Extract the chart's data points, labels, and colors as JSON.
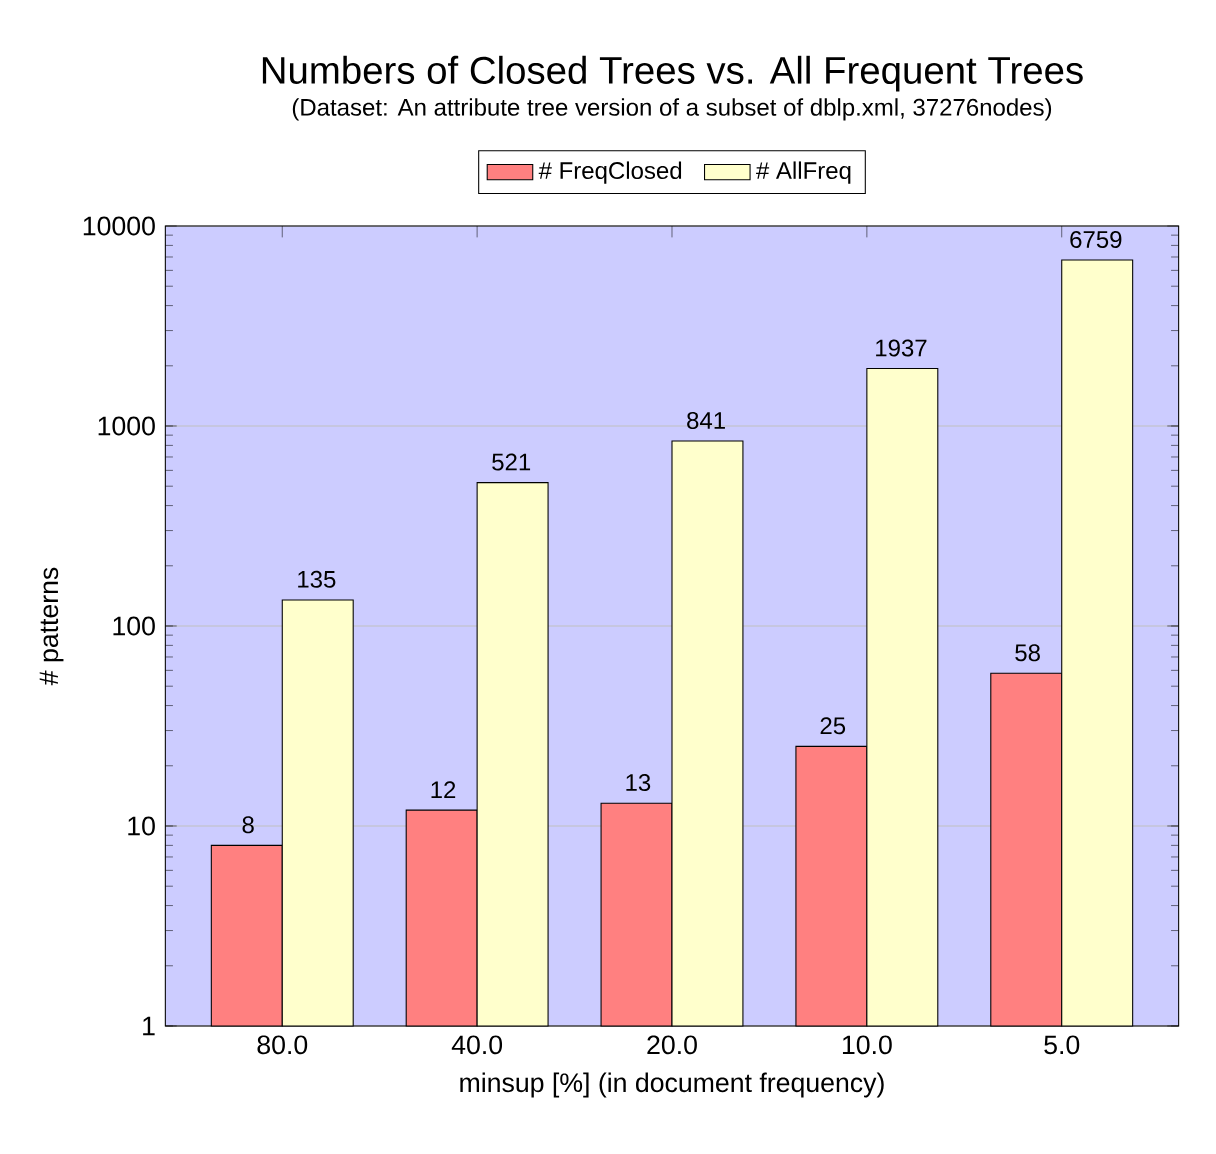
{
  "chart_data": {
    "type": "bar",
    "title": "Numbers of Closed Trees vs. All Frequent Trees",
    "subtitle": "(Dataset: An attribute tree version of a subset of dblp.xml, 37276nodes)",
    "xlabel": "minsup [%] (in document frequency)",
    "ylabel": "# patterns",
    "categories": [
      "80.0",
      "40.0",
      "20.0",
      "10.0",
      "5.0"
    ],
    "series": [
      {
        "name": "# FreqClosed",
        "color": "#ff8080",
        "values": [
          8,
          12,
          13,
          25,
          58
        ]
      },
      {
        "name": "# AllFreq",
        "color": "#ffffcc",
        "values": [
          135,
          521,
          841,
          1937,
          6759
        ]
      }
    ],
    "log": "y",
    "ylim": [
      1,
      10000
    ],
    "yticks": [
      1,
      10,
      100,
      1000,
      10000
    ],
    "grid": "y",
    "legend": "top",
    "data_labels": true
  }
}
